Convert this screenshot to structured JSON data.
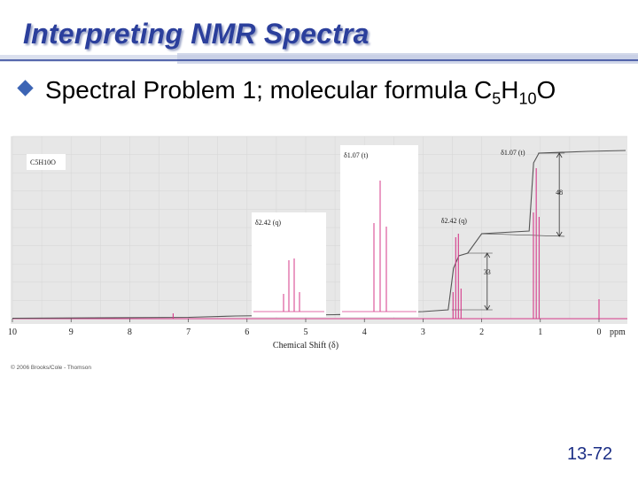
{
  "slide": {
    "title": "Interpreting NMR Spectra",
    "bullet_prefix": "Spectral Problem 1; molecular formula C",
    "formula_sub1": "5",
    "formula_mid": "H",
    "formula_sub2": "10",
    "formula_end": "O",
    "page_number": "13-72",
    "copyright": "© 2006 Brooks/Cole - Thomson"
  },
  "colors": {
    "title": "#2b3f9c",
    "spectrum": "#d63a8a",
    "bullet": "#3c64b4",
    "panel_bg": "#e7e7e7"
  },
  "chart_data": {
    "type": "line",
    "xlabel": "Chemical Shift (δ)",
    "x_unit_label": "ppm",
    "xlim": [
      10,
      0
    ],
    "xticks": [
      "10",
      "9",
      "8",
      "7",
      "6",
      "5",
      "4",
      "3",
      "2",
      "1",
      "0"
    ],
    "formula_label": "C5H10O",
    "grid": true,
    "peaks": [
      {
        "label": "δ2.42 (q)",
        "shift": 2.42,
        "multiplicity": "q",
        "integration": "33"
      },
      {
        "label": "δ1.07 (t)",
        "shift": 1.07,
        "multiplicity": "t",
        "integration": "48"
      },
      {
        "label": "",
        "shift": 0,
        "multiplicity": "s",
        "integration": ""
      }
    ],
    "insets": [
      {
        "label": "δ2.42 (q)",
        "multiplicity": "q"
      },
      {
        "label": "δ1.07 (t)",
        "multiplicity": "t"
      }
    ],
    "integral_labels": [
      "48",
      "33"
    ]
  }
}
